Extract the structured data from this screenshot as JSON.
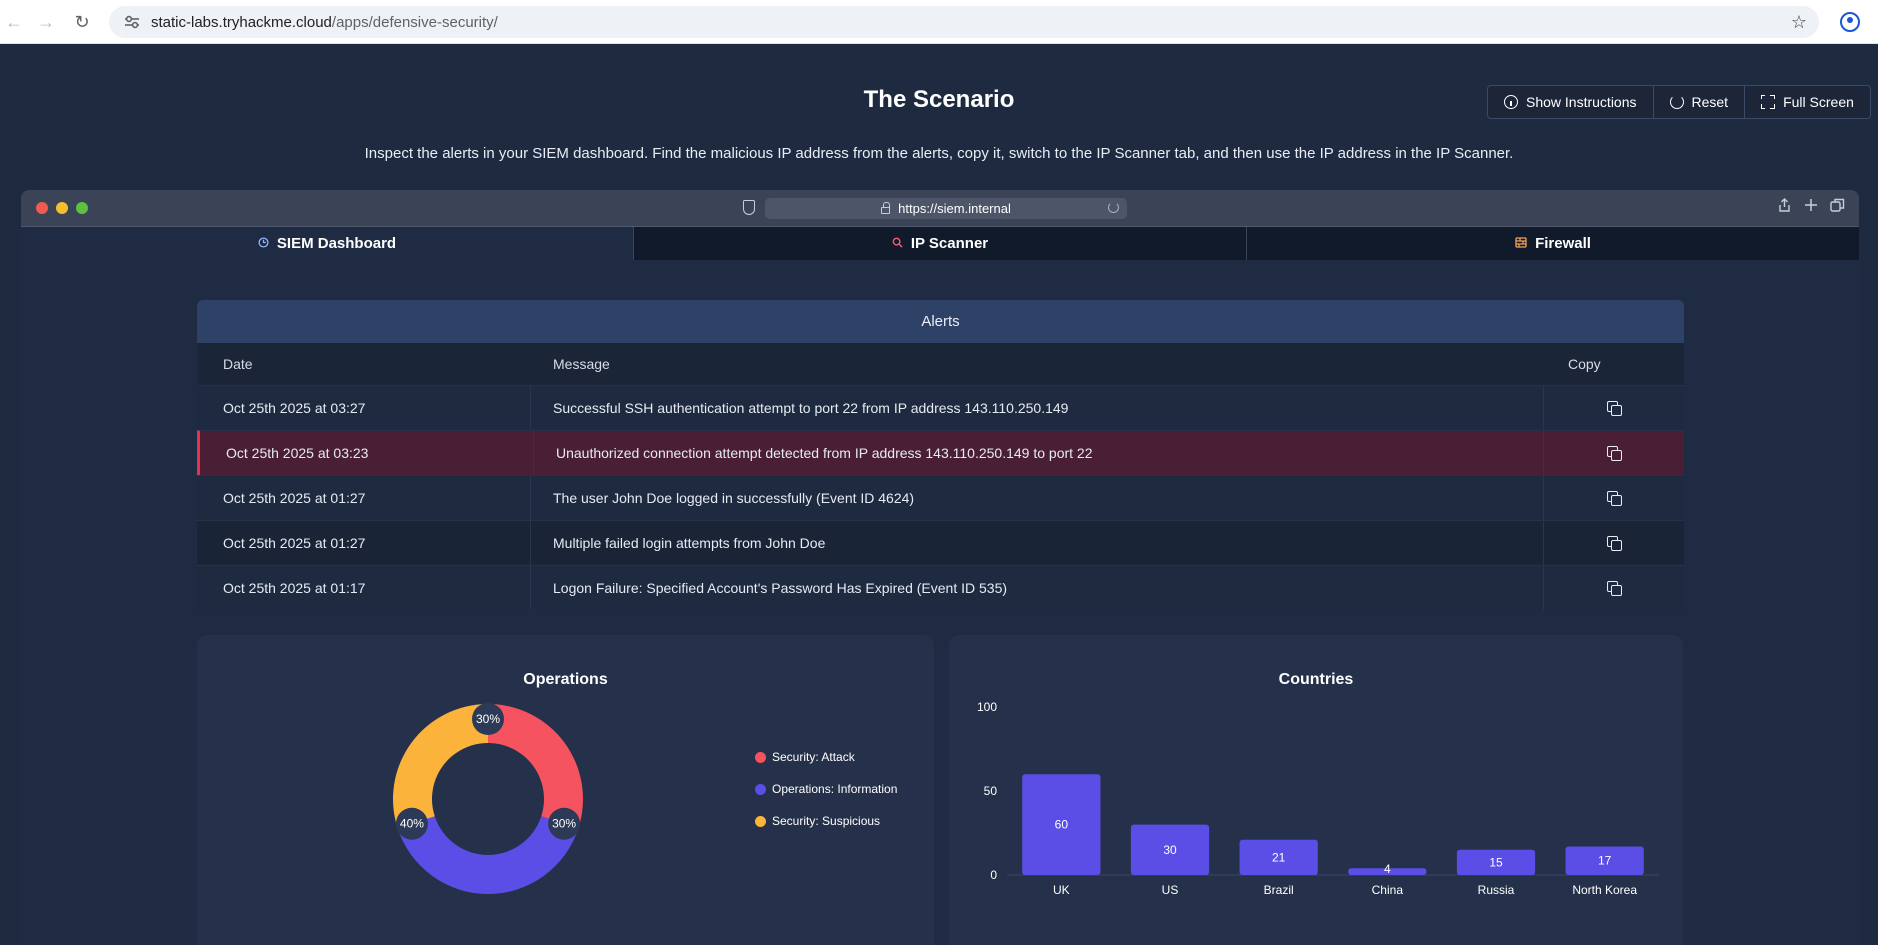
{
  "browser": {
    "url_host": "static-labs.tryhackme.cloud",
    "url_path": "/apps/defensive-security/"
  },
  "scenario": {
    "title": "The Scenario",
    "description": "Inspect the alerts in your SIEM dashboard. Find the malicious IP address from the alerts, copy it, switch to the IP Scanner tab, and then use the IP address in the IP Scanner.",
    "actions": {
      "show_instructions": "Show Instructions",
      "reset": "Reset",
      "full_screen": "Full Screen"
    }
  },
  "inner_browser": {
    "url": "https://siem.internal"
  },
  "tabs": [
    {
      "label": "SIEM Dashboard",
      "icon": "clock-icon",
      "icon_color": "#8fb4ff",
      "active": true
    },
    {
      "label": "IP Scanner",
      "icon": "search-icon",
      "icon_color": "#ff5c72",
      "active": false
    },
    {
      "label": "Firewall",
      "icon": "firewall-icon",
      "icon_color": "#f5a25a",
      "active": false
    }
  ],
  "alerts": {
    "title": "Alerts",
    "columns": {
      "date": "Date",
      "message": "Message",
      "copy": "Copy"
    },
    "rows": [
      {
        "date": "Oct 25th 2025 at 03:27",
        "message": "Successful SSH authentication attempt to port 22 from IP address 143.110.250.149",
        "highlight": false
      },
      {
        "date": "Oct 25th 2025 at 03:23",
        "message": "Unauthorized connection attempt detected from IP address 143.110.250.149 to port 22",
        "highlight": true
      },
      {
        "date": "Oct 25th 2025 at 01:27",
        "message": "The user John Doe logged in successfully (Event ID 4624)",
        "highlight": false
      },
      {
        "date": "Oct 25th 2025 at 01:27",
        "message": "Multiple failed login attempts from John Doe",
        "highlight": false
      },
      {
        "date": "Oct 25th 2025 at 01:17",
        "message": "Logon Failure: Specified Account's Password Has Expired (Event ID 535)",
        "highlight": false
      }
    ]
  },
  "chart_data": [
    {
      "type": "pie",
      "title": "Operations",
      "donut": true,
      "legend_position": "right",
      "slices": [
        {
          "label": "Security: Attack",
          "value": 30,
          "display": "30%",
          "color": "#f5535f"
        },
        {
          "label": "Operations: Information",
          "value": 40,
          "display": "40%",
          "color": "#5b4ee6"
        },
        {
          "label": "Security: Suspicious",
          "value": 30,
          "display": "30%",
          "color": "#fbb33c"
        }
      ]
    },
    {
      "type": "bar",
      "title": "Countries",
      "categories": [
        "UK",
        "US",
        "Brazil",
        "China",
        "Russia",
        "North Korea"
      ],
      "values": [
        60,
        30,
        21,
        4,
        15,
        17
      ],
      "ylim": [
        0,
        100
      ],
      "yticks": [
        0,
        50,
        100
      ],
      "bar_color": "#5b4ee6",
      "grid": false
    }
  ]
}
